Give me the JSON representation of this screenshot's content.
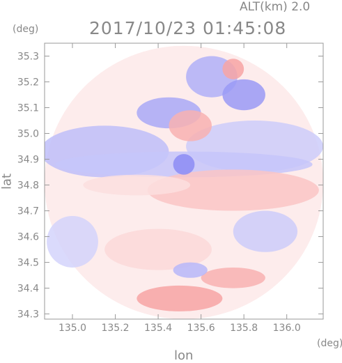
{
  "header": {
    "altitude_label": "ALT(km) 2.0",
    "timestamp": "2017/10/23 01:45:08"
  },
  "colors": {
    "positive": "#f47f7f",
    "negative": "#6f6ff2",
    "axis": "#999999",
    "text": "#888888"
  },
  "chart_data": {
    "type": "heatmap",
    "title": "2017/10/23 01:45:08",
    "subtitle": "ALT(km) 2.0",
    "xlabel": "lon",
    "ylabel": "lat",
    "x_unit": "(deg)",
    "y_unit": "(deg)",
    "xlim": [
      134.87,
      136.17
    ],
    "ylim": [
      34.28,
      35.35
    ],
    "x_ticks": [
      135.0,
      135.2,
      135.4,
      135.6,
      135.8,
      136.0
    ],
    "x_tick_labels": [
      "135.0",
      "135.2",
      "135.4",
      "135.6",
      "135.8",
      "136.0"
    ],
    "y_ticks": [
      34.3,
      34.4,
      34.5,
      34.6,
      34.7,
      34.8,
      34.9,
      35.0,
      35.1,
      35.2,
      35.3
    ],
    "y_tick_labels": [
      "34.3",
      "34.4",
      "34.5",
      "34.6",
      "34.7",
      "34.8",
      "34.9",
      "35.0",
      "35.1",
      "35.2",
      "35.3"
    ],
    "radar_center": {
      "lon": 135.52,
      "lat": 34.81
    },
    "grid": false,
    "legend": "none",
    "regions": [
      {
        "lon": 135.52,
        "lat": 34.81,
        "rlon": 0.65,
        "rlat": 0.53,
        "value": 0.15
      },
      {
        "lon": 135.15,
        "lat": 34.93,
        "rlon": 0.3,
        "rlat": 0.1,
        "value": -0.45
      },
      {
        "lon": 135.85,
        "lat": 34.95,
        "rlon": 0.32,
        "rlat": 0.1,
        "value": -0.35
      },
      {
        "lon": 135.52,
        "lat": 34.88,
        "rlon": 0.6,
        "rlat": 0.05,
        "value": -0.4
      },
      {
        "lon": 135.75,
        "lat": 34.78,
        "rlon": 0.4,
        "rlat": 0.08,
        "value": 0.45
      },
      {
        "lon": 135.3,
        "lat": 34.8,
        "rlon": 0.25,
        "rlat": 0.04,
        "value": 0.25
      },
      {
        "lon": 135.45,
        "lat": 35.08,
        "rlon": 0.15,
        "rlat": 0.06,
        "value": -0.6
      },
      {
        "lon": 135.55,
        "lat": 35.03,
        "rlon": 0.1,
        "rlat": 0.06,
        "value": 0.6
      },
      {
        "lon": 135.65,
        "lat": 35.22,
        "rlon": 0.12,
        "rlat": 0.08,
        "value": -0.55
      },
      {
        "lon": 135.8,
        "lat": 35.15,
        "rlon": 0.1,
        "rlat": 0.06,
        "value": -0.7
      },
      {
        "lon": 135.75,
        "lat": 35.25,
        "rlon": 0.05,
        "rlat": 0.04,
        "value": 0.7
      },
      {
        "lon": 135.5,
        "lat": 34.36,
        "rlon": 0.2,
        "rlat": 0.05,
        "value": 0.7
      },
      {
        "lon": 135.75,
        "lat": 34.44,
        "rlon": 0.15,
        "rlat": 0.04,
        "value": 0.6
      },
      {
        "lon": 135.4,
        "lat": 34.55,
        "rlon": 0.25,
        "rlat": 0.08,
        "value": 0.3
      },
      {
        "lon": 135.0,
        "lat": 34.58,
        "rlon": 0.12,
        "rlat": 0.1,
        "value": -0.3
      },
      {
        "lon": 135.9,
        "lat": 34.62,
        "rlon": 0.15,
        "rlat": 0.08,
        "value": -0.35
      },
      {
        "lon": 135.55,
        "lat": 34.47,
        "rlon": 0.08,
        "rlat": 0.03,
        "value": -0.5
      },
      {
        "lon": 135.52,
        "lat": 34.88,
        "rlon": 0.05,
        "rlat": 0.04,
        "value": -0.8
      }
    ]
  }
}
